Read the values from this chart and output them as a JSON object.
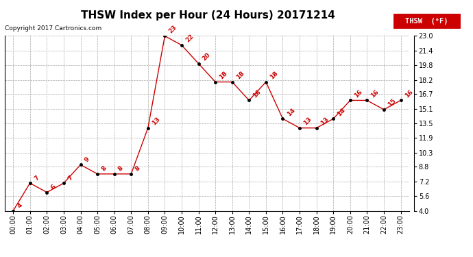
{
  "title": "THSW Index per Hour (24 Hours) 20171214",
  "copyright": "Copyright 2017 Cartronics.com",
  "legend_label": "THSW  (°F)",
  "hours": [
    0,
    1,
    2,
    3,
    4,
    5,
    6,
    7,
    8,
    9,
    10,
    11,
    12,
    13,
    14,
    15,
    16,
    17,
    18,
    19,
    20,
    21,
    22,
    23
  ],
  "values": [
    4,
    7,
    6,
    7,
    9,
    8,
    8,
    8,
    13,
    23,
    22,
    20,
    18,
    18,
    16,
    18,
    14,
    13,
    13,
    14,
    16,
    16,
    15,
    16
  ],
  "line_color": "#cc0000",
  "marker_color": "#000000",
  "background_color": "#ffffff",
  "grid_color": "#aaaaaa",
  "ylim_min": 4.0,
  "ylim_max": 23.0,
  "yticks": [
    4.0,
    5.6,
    7.2,
    8.8,
    10.3,
    11.9,
    13.5,
    15.1,
    16.7,
    18.2,
    19.8,
    21.4,
    23.0
  ],
  "title_fontsize": 11,
  "label_fontsize": 6.5,
  "tick_fontsize": 7,
  "copyright_fontsize": 6.5
}
